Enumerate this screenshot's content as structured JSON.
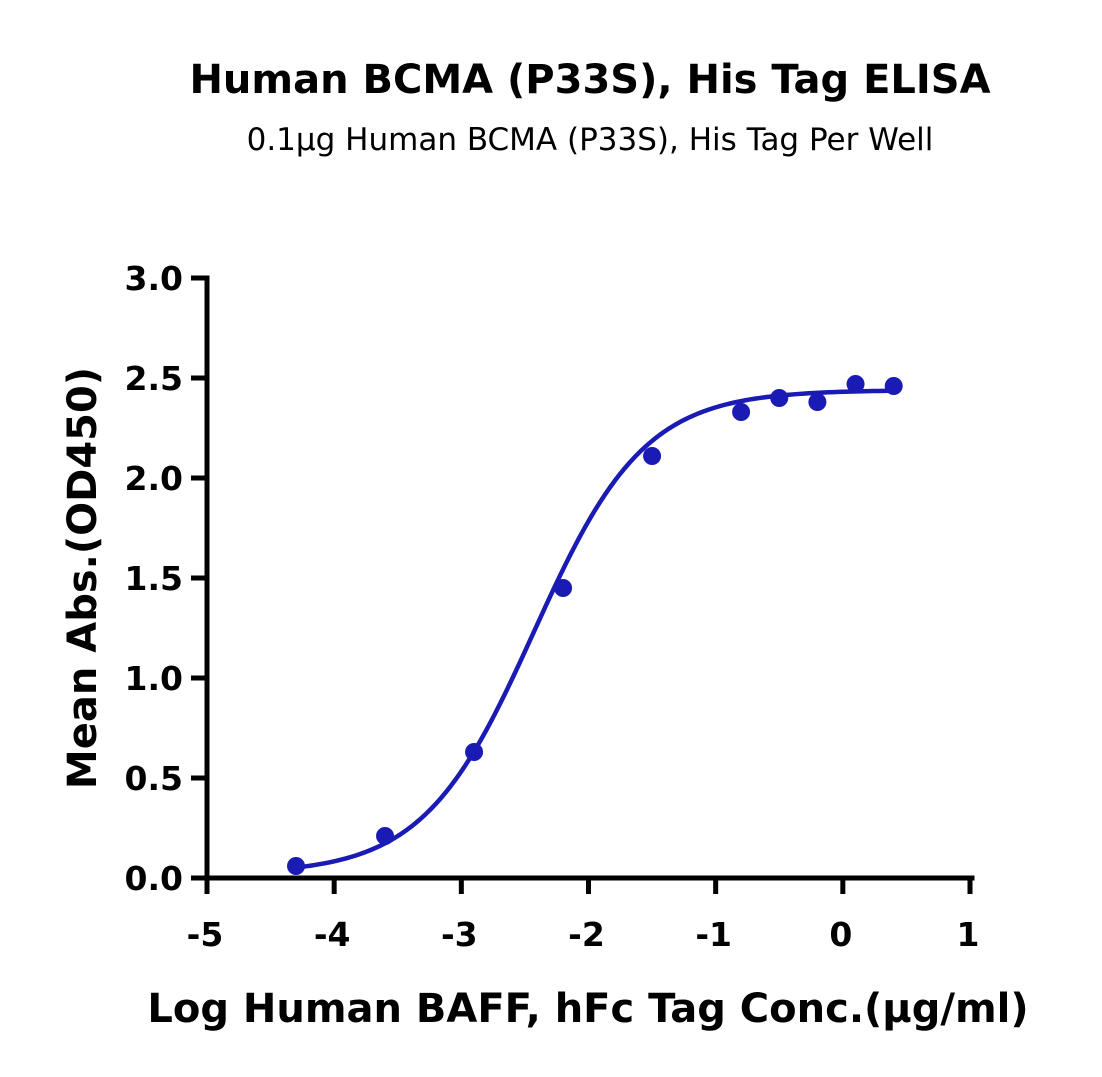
{
  "chart_data": {
    "type": "scatter",
    "title": "Human BCMA (P33S), His Tag ELISA",
    "subtitle": "0.1μg Human BCMA (P33S), His Tag Per Well",
    "xlabel": "Log Human BAFF, hFc Tag Conc.(μg/ml)",
    "ylabel": "Mean Abs.(OD450)",
    "xlim": [
      -5,
      1
    ],
    "ylim": [
      0,
      3.0
    ],
    "x_ticks": [
      "-5",
      "-4",
      "-3",
      "-2",
      "-1",
      "0",
      "1"
    ],
    "y_ticks": [
      "0.0",
      "0.5",
      "1.0",
      "1.5",
      "2.0",
      "2.5",
      "3.0"
    ],
    "grid": false,
    "legend": "none",
    "series": [
      {
        "color": "#1a1ab4",
        "points": [
          {
            "x": -4.3,
            "y": 0.06
          },
          {
            "x": -3.6,
            "y": 0.21
          },
          {
            "x": -2.9,
            "y": 0.63
          },
          {
            "x": -2.2,
            "y": 1.45
          },
          {
            "x": -1.5,
            "y": 2.11
          },
          {
            "x": -0.8,
            "y": 2.33
          },
          {
            "x": -0.5,
            "y": 2.4
          },
          {
            "x": -0.2,
            "y": 2.38
          },
          {
            "x": 0.1,
            "y": 2.47
          },
          {
            "x": 0.4,
            "y": 2.46
          }
        ],
        "fit": {
          "model": "four-parameter logistic",
          "bottom": 0.02,
          "top": 2.44,
          "log_ec50": -2.43,
          "hill_slope": 1.0,
          "x_range": [
            -4.3,
            0.4
          ]
        }
      }
    ]
  }
}
